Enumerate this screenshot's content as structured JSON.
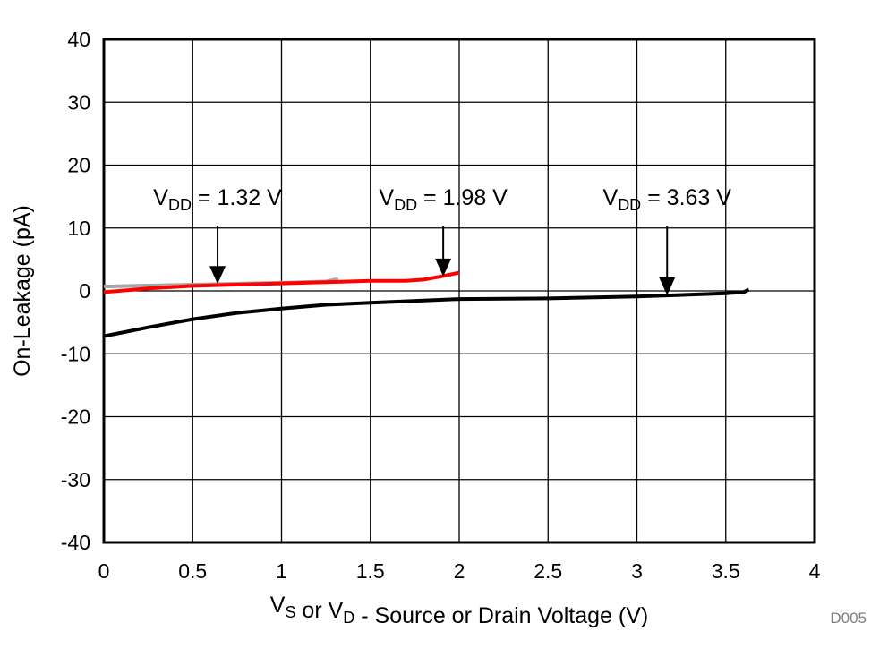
{
  "chart_data": {
    "type": "line",
    "title": "",
    "xlabel": {
      "parts": [
        [
          "V",
          "S"
        ],
        [
          " or ",
          ""
        ],
        [
          "V",
          "D"
        ],
        [
          " - Source or Drain Voltage (V)",
          ""
        ]
      ]
    },
    "ylabel": "On-Leakage (pA)",
    "xlim": [
      0,
      4
    ],
    "ylim": [
      -40,
      40
    ],
    "xticks": [
      "0",
      "0.5",
      "1",
      "1.5",
      "2",
      "2.5",
      "3",
      "3.5",
      "4"
    ],
    "yticks": [
      "40",
      "30",
      "20",
      "10",
      "0",
      "-10",
      "-20",
      "-30",
      "-40"
    ],
    "grid": true,
    "figure_id": "D005",
    "series": [
      {
        "label": "VDD = 1.32 V",
        "color": "#a6a6a6",
        "x": [
          0,
          0.25,
          0.5,
          0.75,
          1.0,
          1.25,
          1.32
        ],
        "y": [
          0.7,
          0.85,
          1.0,
          1.15,
          1.3,
          1.5,
          1.9
        ]
      },
      {
        "label": "VDD = 1.98 V",
        "color": "#ff0000",
        "x": [
          0,
          0.25,
          0.5,
          0.75,
          1.0,
          1.25,
          1.5,
          1.7,
          1.8,
          1.9,
          2.0
        ],
        "y": [
          -0.2,
          0.4,
          0.8,
          1.0,
          1.2,
          1.4,
          1.6,
          1.6,
          1.8,
          2.3,
          2.9
        ]
      },
      {
        "label": "VDD = 3.63 V",
        "color": "#000000",
        "x": [
          0,
          0.25,
          0.5,
          0.75,
          1.0,
          1.25,
          1.5,
          2.0,
          2.5,
          3.0,
          3.5,
          3.6,
          3.63
        ],
        "y": [
          -7.2,
          -5.8,
          -4.5,
          -3.5,
          -2.8,
          -2.2,
          -1.9,
          -1.3,
          -1.2,
          -0.9,
          -0.4,
          -0.2,
          0.2
        ]
      }
    ],
    "annotations": [
      {
        "sub": "DD",
        "pre": "V",
        "post": " = 1.32 V",
        "arrow_x": 0.64,
        "arrow_y": 1.1
      },
      {
        "sub": "DD",
        "pre": "V",
        "post": " = 1.98 V",
        "arrow_x": 1.91,
        "arrow_y": 2.3
      },
      {
        "sub": "DD",
        "pre": "V",
        "post": " = 3.63 V",
        "arrow_x": 3.17,
        "arrow_y": -0.7
      }
    ]
  }
}
